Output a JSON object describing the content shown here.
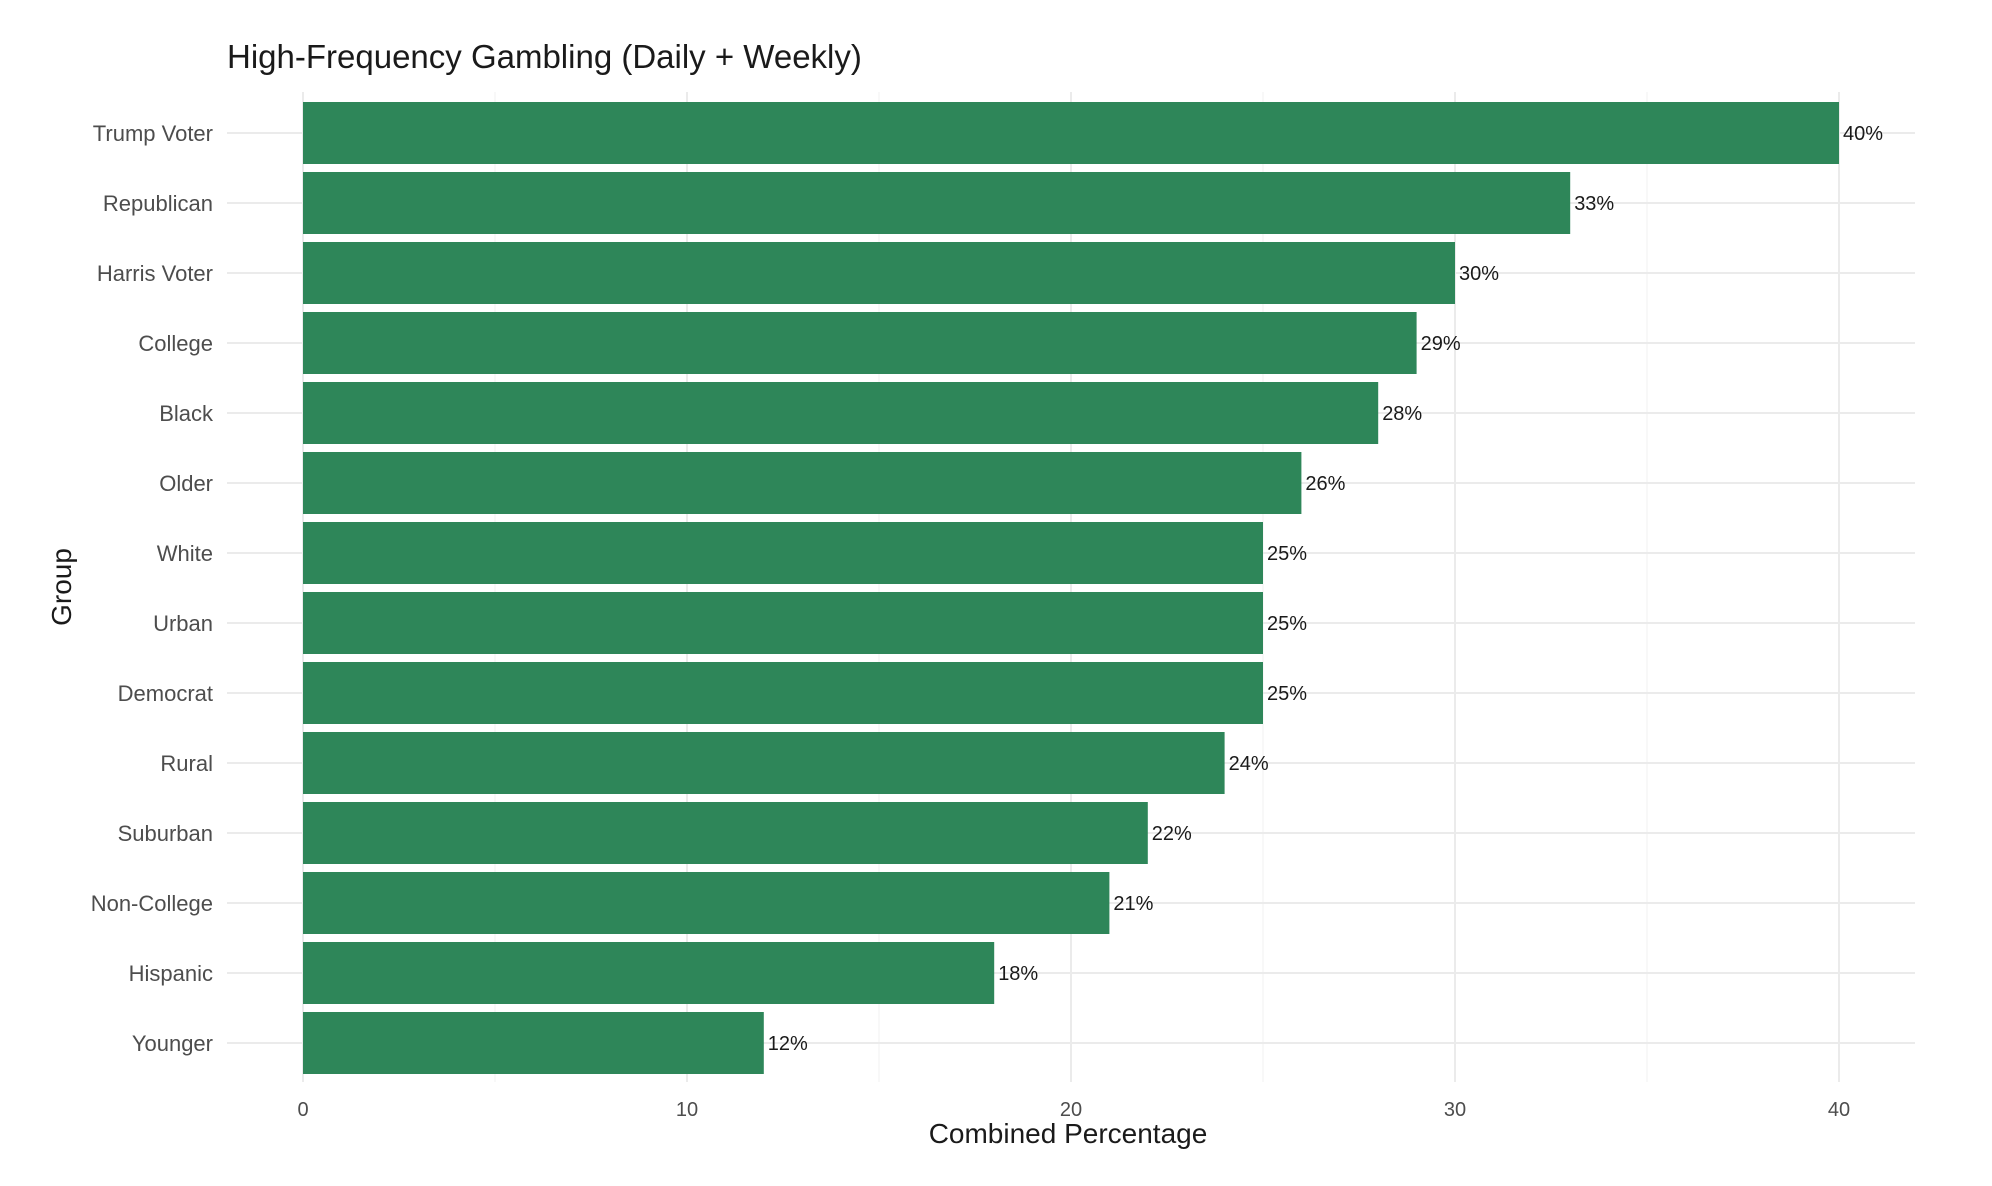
{
  "chart_data": {
    "type": "bar",
    "orientation": "horizontal",
    "title": "High-Frequency Gambling (Daily + Weekly)",
    "xlabel": "Combined Percentage",
    "ylabel": "Group",
    "xlim": [
      0,
      42
    ],
    "x_ticks": [
      0,
      10,
      20,
      30,
      40
    ],
    "grid": true,
    "legend": "none",
    "bar_color": "#2e8659",
    "categories": [
      "Trump Voter",
      "Republican",
      "Harris Voter",
      "College",
      "Black",
      "Older",
      "White",
      "Urban",
      "Democrat",
      "Rural",
      "Suburban",
      "Non-College",
      "Hispanic",
      "Younger"
    ],
    "values": [
      40,
      33,
      30,
      29,
      28,
      26,
      25,
      25,
      25,
      24,
      22,
      21,
      18,
      12
    ],
    "value_labels": [
      "40%",
      "33%",
      "30%",
      "29%",
      "28%",
      "26%",
      "25%",
      "25%",
      "25%",
      "24%",
      "22%",
      "21%",
      "18%",
      "12%"
    ]
  }
}
